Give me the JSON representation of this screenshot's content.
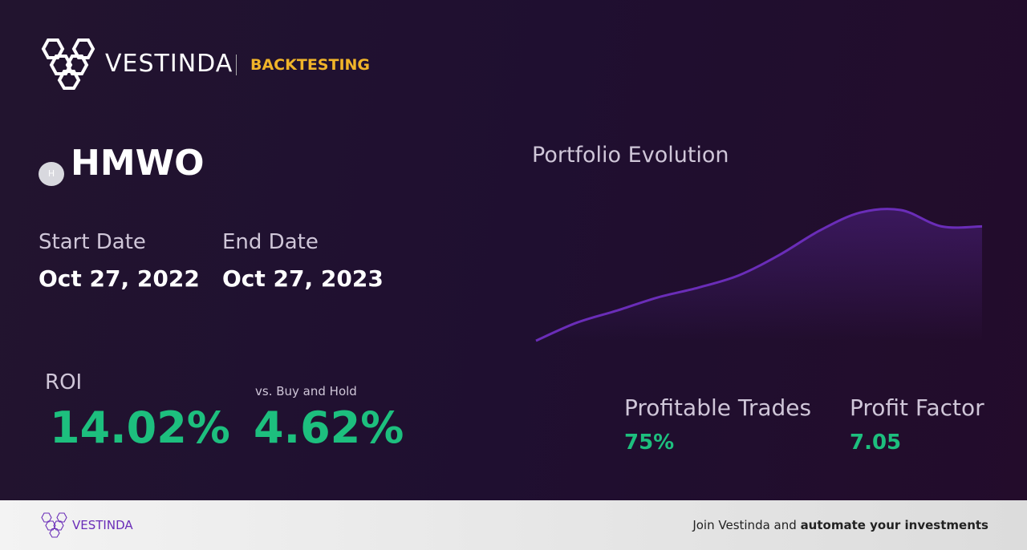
{
  "header": {
    "brand": "VESTINDA",
    "section": "BACKTESTING"
  },
  "asset": {
    "icon": "H",
    "ticker": "HMWO"
  },
  "dates": {
    "start_label": "Start Date",
    "start": "Oct 27, 2022",
    "end_label": "End Date",
    "end": "Oct 27, 2023"
  },
  "roi": {
    "label": "ROI",
    "value": "14.02%"
  },
  "buy_hold": {
    "label": "vs. Buy and Hold",
    "value": "4.62%"
  },
  "chart_data": {
    "type": "line",
    "title": "Portfolio Evolution",
    "values": [
      0,
      22,
      37,
      53,
      65,
      80,
      105,
      135,
      157,
      160,
      140,
      140
    ],
    "color": "#6a2db8"
  },
  "stats": [
    {
      "label": "Profitable Trades",
      "value": "75%"
    },
    {
      "label": "Profit Factor",
      "value": "7.05"
    }
  ],
  "footer": {
    "brand": "VESTINDA",
    "cta": "Join Vestinda and",
    "cta_bold": "automate your investments"
  }
}
